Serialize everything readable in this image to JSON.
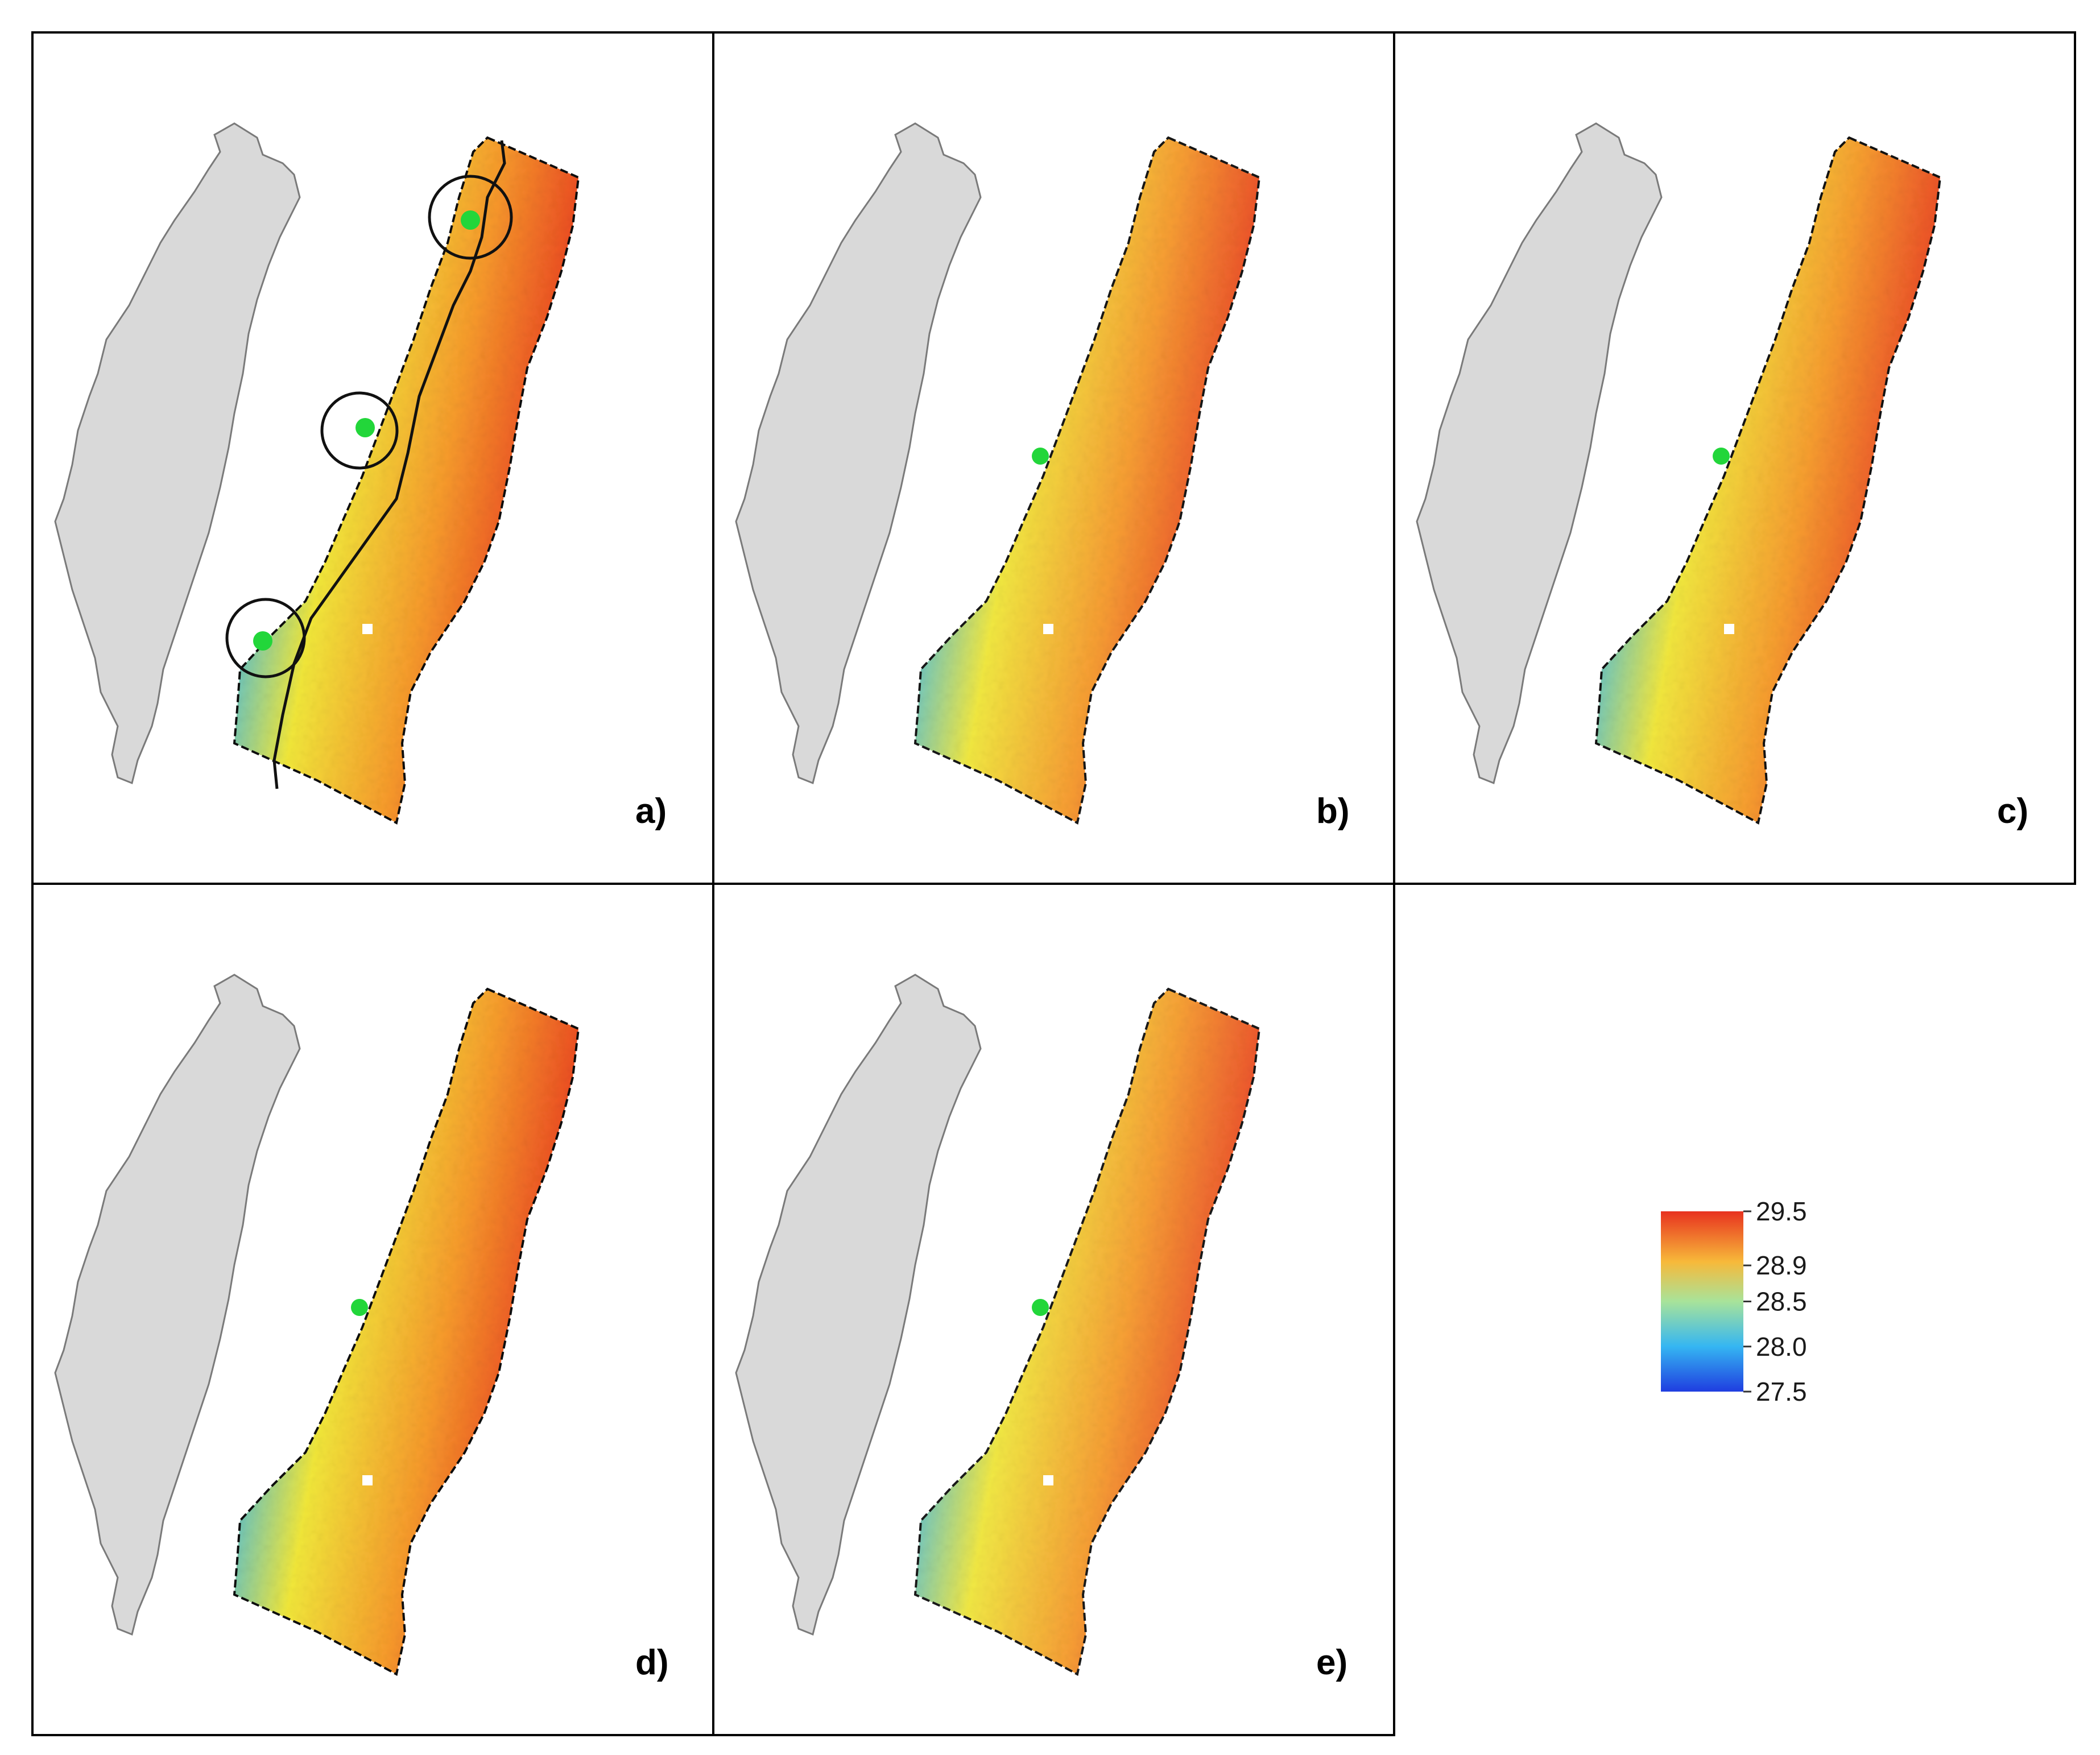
{
  "map_colors": {
    "land": "#d9d9d9",
    "land_outline": "#7a7a7a",
    "cold": "#1f3de0",
    "mid_cold": "#35b6f2",
    "mid": "#f2e83a",
    "mid_warm": "#f79a2c",
    "warm": "#e8321f",
    "station": "#22d63a",
    "frame": "#000000",
    "coast_line": "#111111"
  },
  "panels": [
    {
      "label": "a)",
      "has_zones": true,
      "warmth": 1.0
    },
    {
      "label": "b)",
      "has_zones": false,
      "warmth": 0.85
    },
    {
      "label": "c)",
      "has_zones": false,
      "warmth": 0.9
    },
    {
      "label": "d)",
      "has_zones": false,
      "warmth": 1.0
    },
    {
      "label": "e)",
      "has_zones": false,
      "warmth": 0.8
    }
  ],
  "legend": {
    "ticks": [
      "29.5",
      "28.9",
      "28.5",
      "28.0",
      "27.5"
    ],
    "values": [
      29.5,
      28.9,
      28.5,
      28.0,
      27.5
    ],
    "range": [
      27.5,
      29.5
    ],
    "stops": [
      "#1f3de0",
      "#35b6f2",
      "#a8e39a",
      "#f7b93a",
      "#e8321f"
    ]
  }
}
